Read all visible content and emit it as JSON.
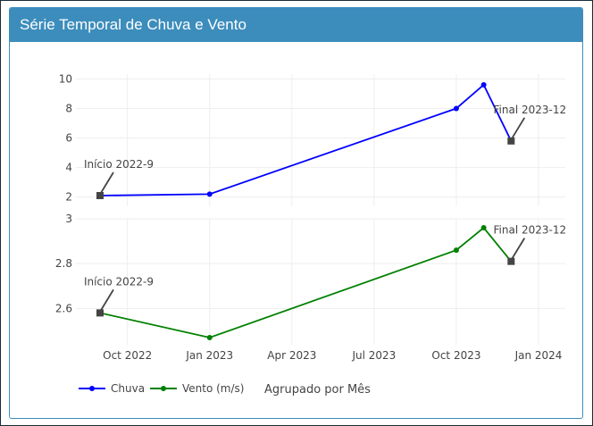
{
  "panel": {
    "title": "Série Temporal de Chuva e Vento"
  },
  "chart_data": {
    "type": "line",
    "x": [
      "2022-09",
      "2023-01",
      "2023-10",
      "2023-11",
      "2023-12"
    ],
    "x_ticks": [
      {
        "date": "2022-10",
        "label": "Oct 2022"
      },
      {
        "date": "2023-01",
        "label": "Jan 2023"
      },
      {
        "date": "2023-04",
        "label": "Apr 2023"
      },
      {
        "date": "2023-07",
        "label": "Jul 2023"
      },
      {
        "date": "2023-10",
        "label": "Oct 2023"
      },
      {
        "date": "2024-01",
        "label": "Jan 2024"
      }
    ],
    "series": [
      {
        "name": "Chuva",
        "color": "#0000ff",
        "values": [
          2.1,
          2.2,
          8.0,
          9.6,
          5.8
        ],
        "yticks": [
          2,
          4,
          6,
          8,
          10
        ],
        "annotations": [
          {
            "x": "2022-09",
            "y": 2.1,
            "text": "Início 2022-9"
          },
          {
            "x": "2023-12",
            "y": 5.8,
            "text": "Final 2023-12"
          }
        ]
      },
      {
        "name": "Vento (m/s)",
        "color": "#008000",
        "values": [
          2.58,
          2.47,
          2.86,
          2.96,
          2.81
        ],
        "yticks": [
          2.6,
          2.8,
          3
        ],
        "annotations": [
          {
            "x": "2022-09",
            "y": 2.58,
            "text": "Início 2022-9"
          },
          {
            "x": "2023-12",
            "y": 2.81,
            "text": "Final 2023-12"
          }
        ]
      }
    ],
    "legend_title": "Agrupado por Mês",
    "legend_position": "bottom-left",
    "grid": true
  }
}
